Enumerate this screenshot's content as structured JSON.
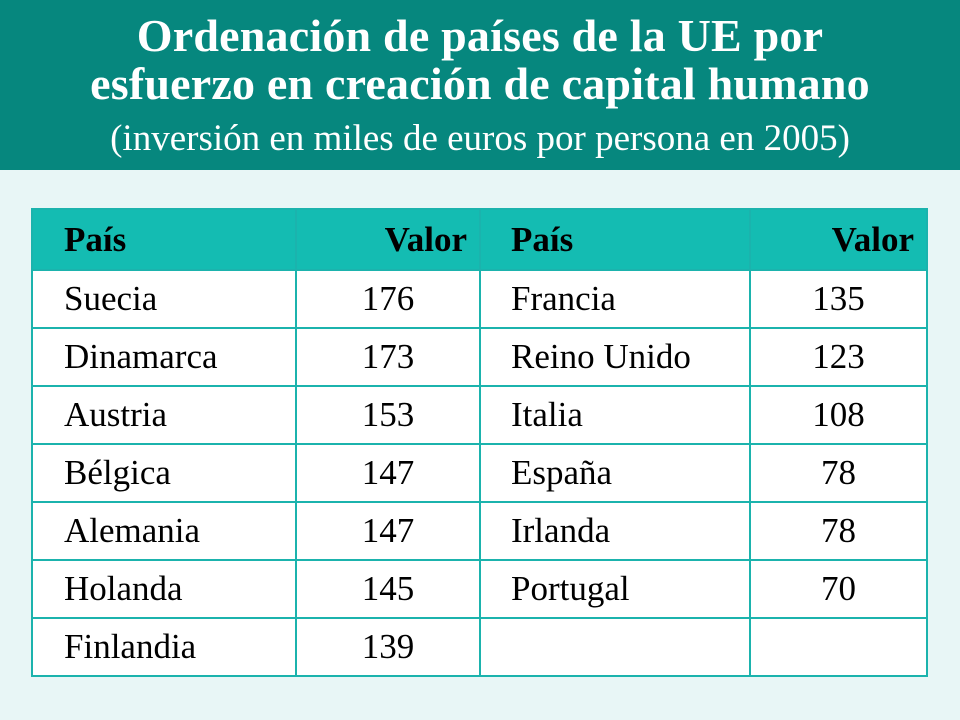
{
  "header": {
    "title_line1": "Ordenación de países de la UE por",
    "title_line2": "esfuerzo en creación de capital humano",
    "subtitle": "(inversión en miles de euros por persona en 2005)"
  },
  "table": {
    "headers": [
      "País",
      "Valor",
      "País",
      "Valor"
    ],
    "rows": [
      {
        "country_left": "Suecia",
        "value_left": "176",
        "country_right": "Francia",
        "value_right": "135"
      },
      {
        "country_left": "Dinamarca",
        "value_left": "173",
        "country_right": "Reino Unido",
        "value_right": "123"
      },
      {
        "country_left": "Austria",
        "value_left": "153",
        "country_right": "Italia",
        "value_right": "108"
      },
      {
        "country_left": "Bélgica",
        "value_left": "147",
        "country_right": "España",
        "value_right": "78"
      },
      {
        "country_left": "Alemania",
        "value_left": "147",
        "country_right": "Irlanda",
        "value_right": "78"
      },
      {
        "country_left": "Holanda",
        "value_left": "145",
        "country_right": "Portugal",
        "value_right": "70"
      },
      {
        "country_left": "Finlandia",
        "value_left": "139",
        "country_right": "",
        "value_right": ""
      }
    ]
  },
  "colors": {
    "header_bg": "#06877e",
    "table_header_bg": "#14bcb2",
    "border": "#1bb3ad",
    "page_bg": "#e8f6f6"
  }
}
